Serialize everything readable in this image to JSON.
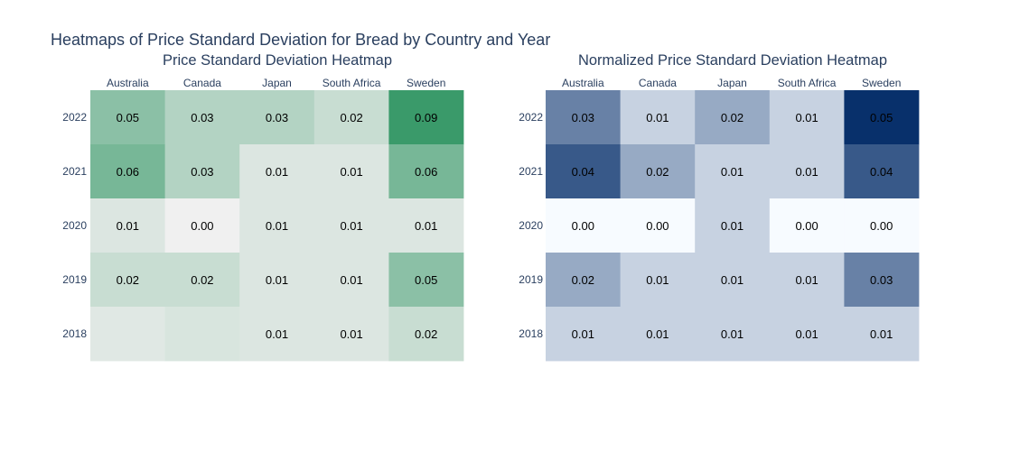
{
  "title": "Heatmaps of Price Standard Deviation for Bread by Country and Year",
  "chart_data": [
    {
      "type": "heatmap",
      "title": "Price Standard Deviation Heatmap",
      "colorscale": "Greens",
      "categories": [
        "Australia",
        "Canada",
        "Japan",
        "South Africa",
        "Sweden"
      ],
      "y": [
        "2022",
        "2021",
        "2020",
        "2019",
        "2018"
      ],
      "values": [
        [
          0.05,
          0.03,
          0.03,
          0.02,
          0.09
        ],
        [
          0.06,
          0.03,
          0.01,
          0.01,
          0.06
        ],
        [
          0.01,
          0.0,
          0.01,
          0.01,
          0.01
        ],
        [
          0.02,
          0.02,
          0.01,
          0.01,
          0.05
        ],
        [
          0.008,
          0.012,
          0.01,
          0.01,
          0.02
        ]
      ],
      "labels": [
        [
          "0.05",
          "0.03",
          "0.03",
          "0.02",
          "0.09"
        ],
        [
          "0.06",
          "0.03",
          "0.01",
          "0.01",
          "0.06"
        ],
        [
          "0.01",
          "0.00",
          "0.01",
          "0.01",
          "0.01"
        ],
        [
          "0.02",
          "0.02",
          "0.01",
          "0.01",
          "0.05"
        ],
        [
          "",
          "",
          "0.01",
          "0.01",
          "0.02"
        ]
      ]
    },
    {
      "type": "heatmap",
      "title": "Normalized Price Standard Deviation Heatmap",
      "colorscale": "Blues",
      "categories": [
        "Australia",
        "Canada",
        "Japan",
        "South Africa",
        "Sweden"
      ],
      "y": [
        "2022",
        "2021",
        "2020",
        "2019",
        "2018"
      ],
      "values": [
        [
          0.03,
          0.01,
          0.02,
          0.01,
          0.05
        ],
        [
          0.04,
          0.02,
          0.01,
          0.01,
          0.04
        ],
        [
          0.0,
          0.0,
          0.01,
          0.0,
          0.0
        ],
        [
          0.02,
          0.01,
          0.01,
          0.01,
          0.03
        ],
        [
          0.01,
          0.01,
          0.01,
          0.01,
          0.01
        ]
      ],
      "labels": [
        [
          "0.03",
          "0.01",
          "0.02",
          "0.01",
          "0.05"
        ],
        [
          "0.04",
          "0.02",
          "0.01",
          "0.01",
          "0.04"
        ],
        [
          "0.00",
          "0.00",
          "0.01",
          "0.00",
          "0.00"
        ],
        [
          "0.02",
          "0.01",
          "0.01",
          "0.01",
          "0.03"
        ],
        [
          "0.01",
          "0.01",
          "0.01",
          "0.01",
          "0.01"
        ]
      ],
      "colors": {
        "low": "#f7fbff",
        "high": "#08306b"
      }
    }
  ],
  "colors": {
    "greens_low": "#f0f0f0",
    "greens_high": "#3a9a6a",
    "blues_low": "#f7fbff",
    "blues_high": "#08306b",
    "title": "#2a3f5f"
  }
}
